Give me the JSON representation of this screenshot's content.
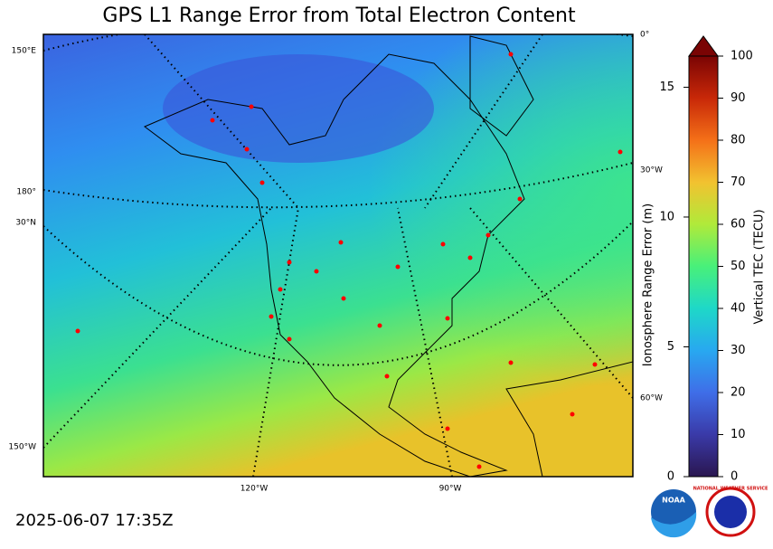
{
  "title": "GPS L1 Range Error from Total Electron Content",
  "timestamp": "2025-06-07 17:35Z",
  "map": {
    "graticule_labels": [
      "150°E",
      "180°",
      "30°N",
      "150°W",
      "0°",
      "30°W",
      "60°W",
      "120°W",
      "90°W"
    ]
  },
  "colorbar": {
    "label": "Vertical TEC (TECU)",
    "lim": [
      0,
      100
    ],
    "ticks": [
      0,
      10,
      20,
      30,
      40,
      50,
      60,
      70,
      80,
      90,
      100
    ],
    "extend": "max"
  },
  "range_axis": {
    "label": "Ionosphere Range Error (m)",
    "lim": [
      0,
      16.2
    ],
    "ticks": [
      0,
      5,
      10,
      15
    ]
  },
  "logos": [
    "NOAA",
    "NATIONAL WEATHER SERVICE"
  ]
}
